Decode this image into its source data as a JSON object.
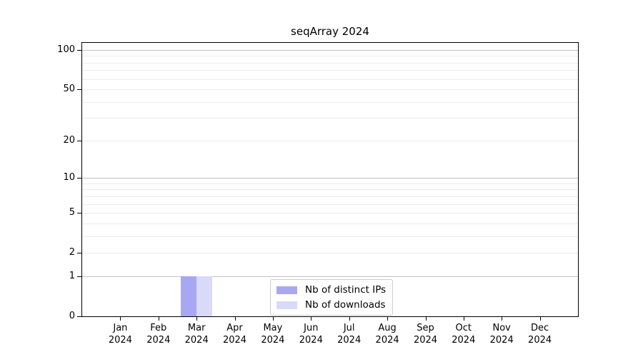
{
  "title": "seqArray 2024",
  "chart_data": {
    "type": "bar",
    "title": "seqArray 2024",
    "categories": [
      "Jan",
      "Feb",
      "Mar",
      "Apr",
      "May",
      "Jun",
      "Jul",
      "Aug",
      "Sep",
      "Oct",
      "Nov",
      "Dec"
    ],
    "categories_year": "2024",
    "series": [
      {
        "name": "Nb of distinct IPs",
        "color": "#a8a8f2",
        "values": [
          0,
          0,
          1,
          0,
          0,
          0,
          0,
          0,
          0,
          0,
          0,
          0
        ]
      },
      {
        "name": "Nb of downloads",
        "color": "#d9d9f8",
        "values": [
          0,
          0,
          1,
          0,
          0,
          0,
          0,
          0,
          0,
          0,
          0,
          0
        ]
      }
    ],
    "xlabel": "",
    "ylabel": "",
    "yscale": "log1p",
    "ylim": [
      0,
      113
    ],
    "yticks": [
      0,
      1,
      2,
      5,
      10,
      20,
      50,
      100
    ],
    "gridlines": [
      1,
      2,
      3,
      4,
      5,
      6,
      7,
      8,
      9,
      10,
      20,
      30,
      40,
      50,
      60,
      70,
      80,
      90,
      100
    ],
    "major_gridlines": [
      1,
      10,
      100
    ],
    "grid": "horizontal-only",
    "legend_position": "lower-center-inside",
    "axis_color": "#000000",
    "grid_minor_color": "#ececec",
    "grid_major_color": "#c2c2c2",
    "legend_border_color": "#cccccc"
  },
  "legend": {
    "items": [
      {
        "label": "Nb of distinct IPs"
      },
      {
        "label": "Nb of downloads"
      }
    ]
  }
}
